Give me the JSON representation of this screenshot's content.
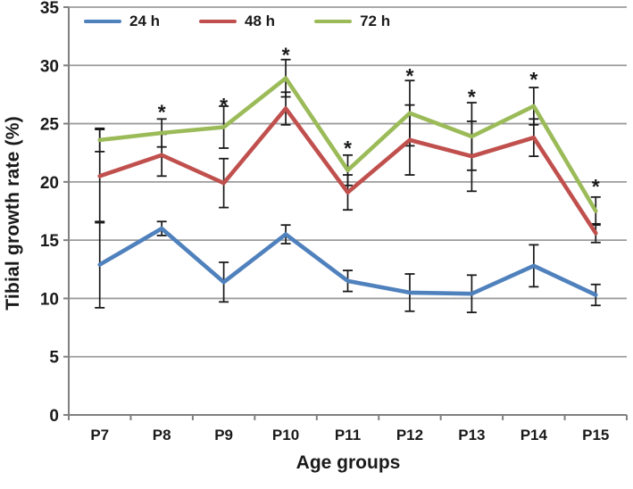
{
  "figure": {
    "background": "#ffffff"
  },
  "chart_data": {
    "type": "line",
    "title": "",
    "xlabel": "Age groups",
    "ylabel": "Tibial growth rate (%)",
    "categories": [
      "P7",
      "P8",
      "P9",
      "P10",
      "P11",
      "P12",
      "P13",
      "P14",
      "P15"
    ],
    "series": [
      {
        "name": "24 h",
        "color": "#4F81BD",
        "values": [
          12.9,
          16.0,
          11.4,
          15.5,
          11.5,
          10.5,
          10.4,
          12.8,
          10.3
        ],
        "errors": [
          3.7,
          0.6,
          1.7,
          0.8,
          0.9,
          1.6,
          1.6,
          1.8,
          0.9
        ]
      },
      {
        "name": "48 h",
        "color": "#C0504D",
        "values": [
          20.5,
          22.3,
          19.9,
          26.3,
          19.1,
          23.6,
          22.2,
          23.8,
          15.6
        ],
        "errors": [
          4.0,
          1.8,
          2.1,
          1.4,
          1.5,
          3.0,
          3.0,
          1.6,
          0.8
        ]
      },
      {
        "name": "72 h",
        "color": "#9BBB59",
        "values": [
          23.6,
          24.2,
          24.7,
          28.9,
          21.0,
          25.9,
          23.9,
          26.5,
          17.5
        ],
        "errors": [
          1.0,
          1.2,
          1.8,
          1.6,
          1.3,
          2.8,
          2.9,
          1.6,
          1.2
        ]
      }
    ],
    "significance_markers": [
      {
        "category": "P8",
        "y": 26.3,
        "symbol": "*"
      },
      {
        "category": "P9",
        "y": 26.9,
        "symbol": "*"
      },
      {
        "category": "P10",
        "y": 31.2,
        "symbol": "*"
      },
      {
        "category": "P11",
        "y": 23.2,
        "symbol": "*"
      },
      {
        "category": "P12",
        "y": 29.4,
        "symbol": "*"
      },
      {
        "category": "P13",
        "y": 27.6,
        "symbol": "*"
      },
      {
        "category": "P14",
        "y": 29.1,
        "symbol": "*"
      },
      {
        "category": "P15",
        "y": 19.9,
        "symbol": "*"
      }
    ],
    "ylim": [
      0,
      35
    ],
    "yticks": [
      0,
      5,
      10,
      15,
      20,
      25,
      30,
      35
    ],
    "grid": true,
    "legend_position": "top-left"
  },
  "style": {
    "gridline_color": "#9c9c9c",
    "axis_color": "#808080",
    "error_bar_color": "#1a1a1a",
    "text_color": "#1a1a1a",
    "series_stroke_width": 4.6
  }
}
